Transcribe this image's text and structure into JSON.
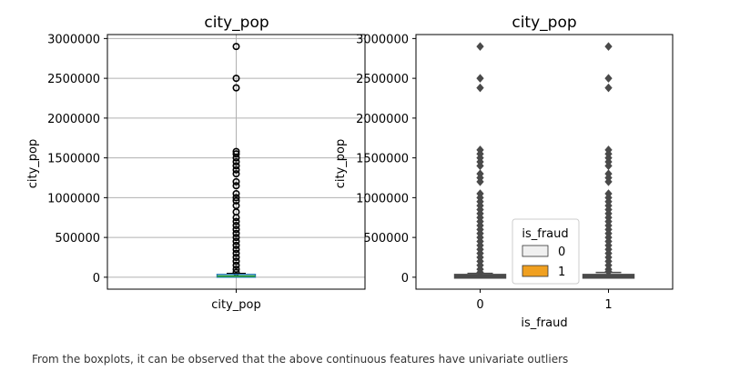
{
  "caption": "From the boxplots, it can be observed that the above continuous features have univariate outliers",
  "colors": {
    "box_left": "#1f77b4",
    "median_left": "#2ca02c",
    "grid": "#b0b0b0",
    "seaborn_gray": "#4a4a4a",
    "fraud_0": "#f0f0f0",
    "fraud_1": "#f0a020"
  },
  "chart_data": [
    {
      "type": "box",
      "title": "city_pop",
      "xlabel": "",
      "ylabel": "city_pop",
      "grid": true,
      "ylim": [
        -150000,
        3050000
      ],
      "yticks": [
        0,
        500000,
        1000000,
        1500000,
        2000000,
        2500000,
        3000000
      ],
      "ytick_labels": [
        "0",
        "500000",
        "1000000",
        "1500000",
        "2000000",
        "2500000",
        "3000000"
      ],
      "categories": [
        "city_pop"
      ],
      "boxes": [
        {
          "category": "city_pop",
          "whisker_low": 23,
          "q1": 743,
          "median": 2456,
          "q3": 20328,
          "whisker_high": 49000,
          "outliers": [
            60000,
            100000,
            150000,
            200000,
            250000,
            300000,
            350000,
            400000,
            450000,
            500000,
            550000,
            600000,
            650000,
            700000,
            750000,
            820000,
            900000,
            960000,
            1000000,
            1050000,
            1150000,
            1200000,
            1300000,
            1350000,
            1400000,
            1450000,
            1500000,
            1550000,
            1580000,
            2380000,
            2500000,
            2900000
          ]
        }
      ]
    },
    {
      "type": "box",
      "title": "city_pop",
      "xlabel": "is_fraud",
      "ylabel": "city_pop",
      "grid": false,
      "ylim": [
        -150000,
        3050000
      ],
      "yticks": [
        0,
        500000,
        1000000,
        1500000,
        2000000,
        2500000,
        3000000
      ],
      "ytick_labels": [
        "0",
        "500000",
        "1000000",
        "1500000",
        "2000000",
        "2500000",
        "3000000"
      ],
      "categories": [
        "0",
        "1"
      ],
      "legend": {
        "title": "is_fraud",
        "entries": [
          "0",
          "1"
        ],
        "placement": "lower center"
      },
      "boxes": [
        {
          "category": "0",
          "whisker_low": 23,
          "q1": 743,
          "median": 2456,
          "q3": 20328,
          "whisker_high": 49000,
          "outliers": [
            60000,
            100000,
            150000,
            200000,
            250000,
            300000,
            350000,
            400000,
            450000,
            500000,
            550000,
            600000,
            650000,
            700000,
            750000,
            800000,
            850000,
            900000,
            950000,
            1000000,
            1050000,
            1200000,
            1250000,
            1300000,
            1400000,
            1450000,
            1500000,
            1550000,
            1600000,
            2380000,
            2500000,
            2900000
          ]
        },
        {
          "category": "1",
          "whisker_low": 23,
          "q1": 741,
          "median": 2526,
          "q3": 17565,
          "whisker_high": 60000,
          "outliers": [
            70000,
            100000,
            150000,
            200000,
            250000,
            300000,
            350000,
            400000,
            450000,
            500000,
            550000,
            600000,
            650000,
            700000,
            750000,
            800000,
            850000,
            900000,
            950000,
            1000000,
            1050000,
            1200000,
            1250000,
            1300000,
            1400000,
            1450000,
            1500000,
            1550000,
            1600000,
            2380000,
            2500000,
            2900000
          ]
        }
      ]
    }
  ]
}
